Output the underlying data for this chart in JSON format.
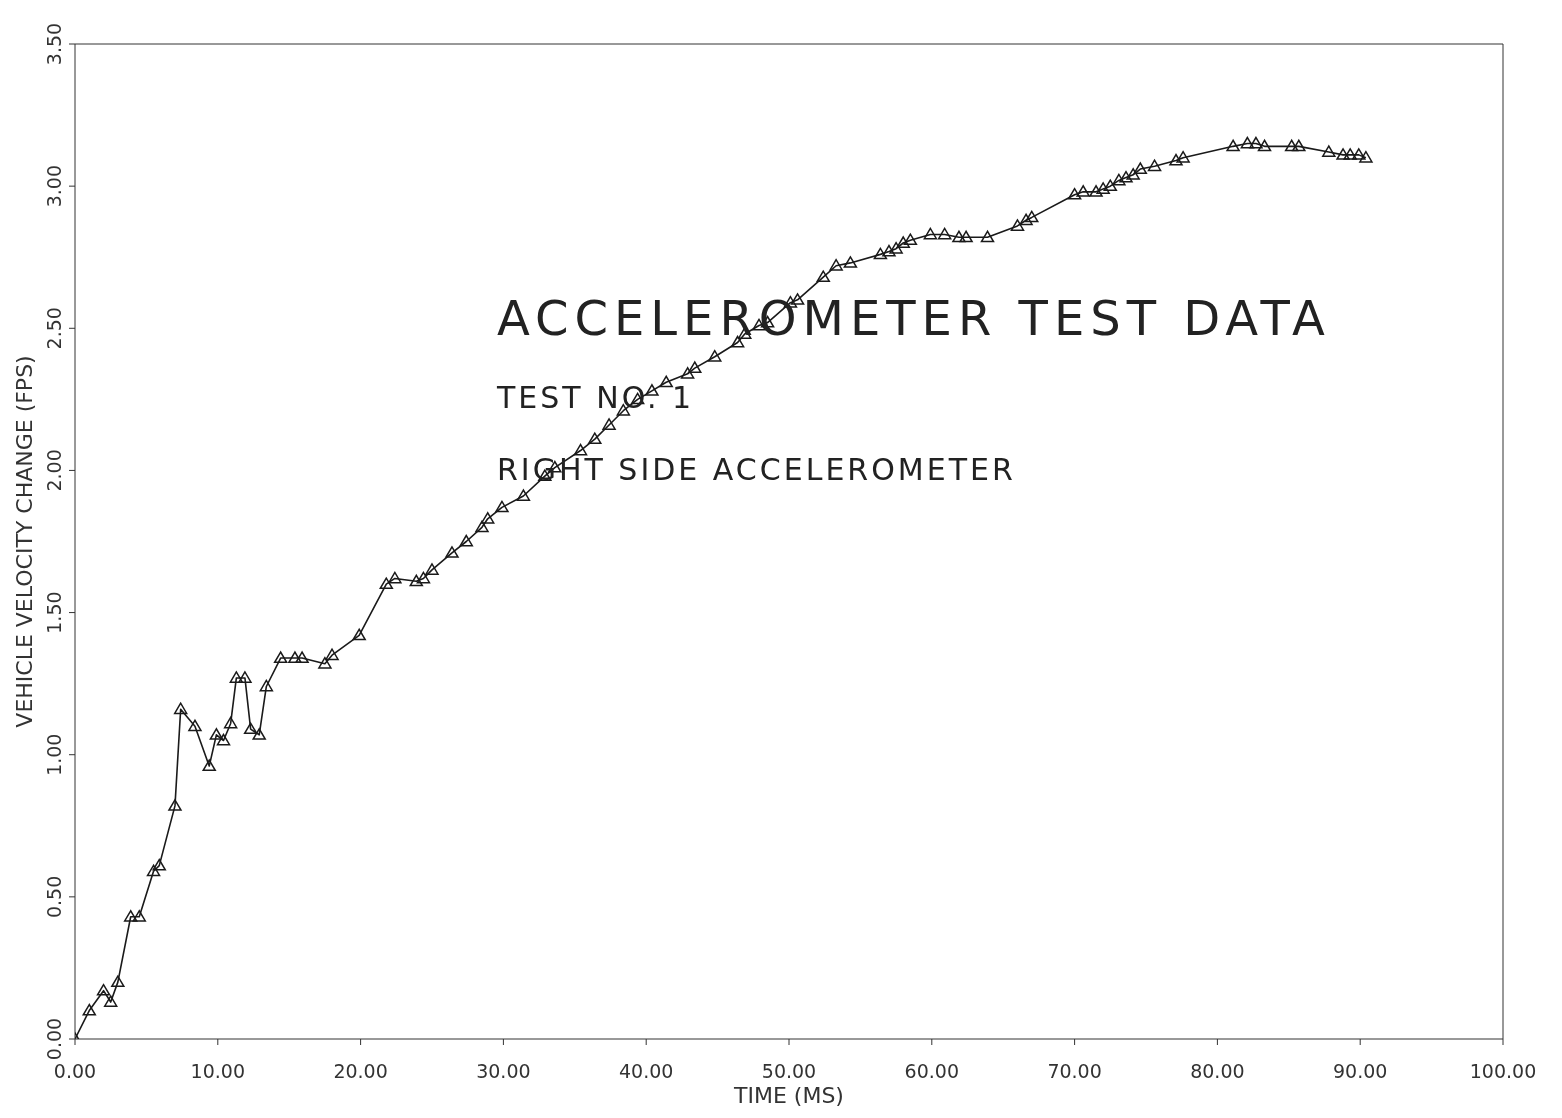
{
  "chart_data": {
    "type": "line",
    "title": "ACCELEROMETER TEST DATA",
    "annotations": [
      "TEST NO. 1",
      "RIGHT SIDE ACCELEROMETER"
    ],
    "xlabel": "TIME (MS)",
    "ylabel": "VEHICLE VELOCITY CHANGE (FPS)",
    "x": [
      0,
      1.0,
      2.0,
      2.5,
      3.0,
      3.9,
      4.5,
      5.5,
      5.9,
      7.0,
      7.4,
      8.4,
      9.4,
      9.9,
      10.4,
      10.9,
      11.3,
      11.9,
      12.3,
      12.9,
      13.4,
      14.4,
      15.4,
      15.9,
      17.5,
      18.0,
      19.9,
      21.8,
      22.4,
      23.9,
      24.4,
      25.0,
      26.4,
      27.4,
      28.5,
      28.9,
      29.9,
      31.4,
      32.9,
      33.6,
      35.4,
      36.4,
      37.4,
      38.4,
      39.4,
      40.4,
      41.4,
      42.9,
      43.4,
      44.8,
      46.4,
      46.9,
      47.9,
      48.5,
      50.1,
      50.6,
      52.4,
      53.3,
      54.3,
      56.4,
      57.0,
      57.5,
      58.0,
      58.5,
      59.9,
      60.9,
      61.9,
      62.4,
      63.9,
      66.0,
      66.6,
      67.0,
      70.0,
      70.6,
      71.5,
      72.0,
      72.5,
      73.1,
      73.6,
      74.1,
      74.6,
      75.6,
      77.1,
      77.6,
      81.1,
      82.1,
      82.7,
      83.3,
      85.2,
      85.7,
      87.8,
      88.8,
      89.3,
      89.9,
      90.4
    ],
    "series": [
      {
        "color": "#1a1a1a",
        "values": [
          0,
          0.1,
          0.17,
          0.13,
          0.2,
          0.43,
          0.43,
          0.59,
          0.61,
          0.82,
          1.16,
          1.1,
          0.96,
          1.07,
          1.05,
          1.11,
          1.27,
          1.27,
          1.09,
          1.07,
          1.24,
          1.34,
          1.34,
          1.34,
          1.32,
          1.35,
          1.42,
          1.6,
          1.62,
          1.61,
          1.62,
          1.65,
          1.71,
          1.75,
          1.8,
          1.83,
          1.87,
          1.91,
          1.98,
          2.01,
          2.07,
          2.11,
          2.16,
          2.21,
          2.25,
          2.28,
          2.31,
          2.34,
          2.36,
          2.4,
          2.45,
          2.48,
          2.51,
          2.52,
          2.59,
          2.6,
          2.68,
          2.72,
          2.73,
          2.76,
          2.77,
          2.78,
          2.8,
          2.81,
          2.83,
          2.83,
          2.82,
          2.82,
          2.82,
          2.86,
          2.88,
          2.89,
          2.97,
          2.98,
          2.98,
          2.99,
          3.0,
          3.02,
          3.03,
          3.04,
          3.06,
          3.07,
          3.09,
          3.1,
          3.14,
          3.15,
          3.15,
          3.14,
          3.14,
          3.14,
          3.12,
          3.11,
          3.11,
          3.11,
          3.1
        ]
      }
    ],
    "xlim": [
      0,
      100
    ],
    "xticks": [
      {
        "value": 0,
        "label": "0.00"
      },
      {
        "value": 10,
        "label": "10.00"
      },
      {
        "value": 20,
        "label": "20.00"
      },
      {
        "value": 30,
        "label": "30.00"
      },
      {
        "value": 40,
        "label": "40.00"
      },
      {
        "value": 50,
        "label": "50.00"
      },
      {
        "value": 60,
        "label": "60.00"
      },
      {
        "value": 70,
        "label": "70.00"
      },
      {
        "value": 80,
        "label": "80.00"
      },
      {
        "value": 90,
        "label": "90.00"
      },
      {
        "value": 100,
        "label": "100.00"
      }
    ],
    "ylim": [
      0,
      3.5
    ],
    "yticks": [
      {
        "value": 0,
        "label": "0.00"
      },
      {
        "value": 0.5,
        "label": "0.50"
      },
      {
        "value": 1,
        "label": "1.00"
      },
      {
        "value": 1.5,
        "label": "1.50"
      },
      {
        "value": 2,
        "label": "2.00"
      },
      {
        "value": 2.5,
        "label": "2.50"
      },
      {
        "value": 3,
        "label": "3.00"
      },
      {
        "value": 3.5,
        "label": "3.50"
      }
    ],
    "marker": "triangle",
    "line_style": "solid",
    "grid": false,
    "legend": false
  }
}
